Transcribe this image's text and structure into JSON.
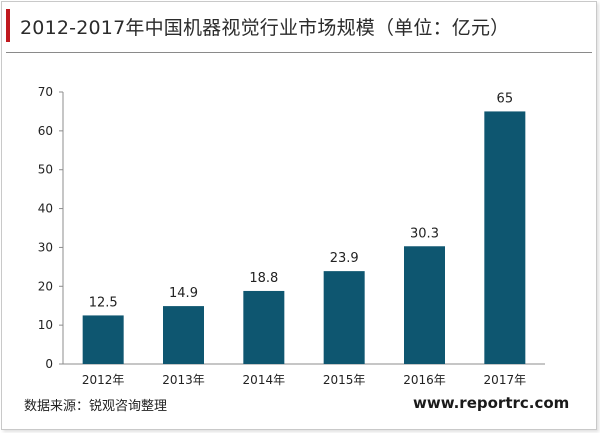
{
  "header": {
    "title": "2012-2017年中国机器视觉行业市场规模（单位：亿元）"
  },
  "footer": {
    "source": "数据来源：锐观咨询整理",
    "website": "www.reportrc.com"
  },
  "colors": {
    "bar": "#0e5670",
    "accent": "#c0191f",
    "axis": "#8c8c8c",
    "text": "#222222"
  },
  "chart_data": {
    "type": "bar",
    "title": "",
    "xlabel": "",
    "ylabel": "",
    "categories": [
      "2012年",
      "2013年",
      "2014年",
      "2015年",
      "2016年",
      "2017年"
    ],
    "values": [
      12.5,
      14.9,
      18.8,
      23.9,
      30.3,
      65
    ],
    "value_labels": [
      "12.5",
      "14.9",
      "18.8",
      "23.9",
      "30.3",
      "65"
    ],
    "ylim": [
      0,
      70
    ],
    "yticks": [
      0,
      10,
      20,
      30,
      40,
      50,
      60,
      70
    ],
    "grid": false,
    "legend": "none"
  }
}
